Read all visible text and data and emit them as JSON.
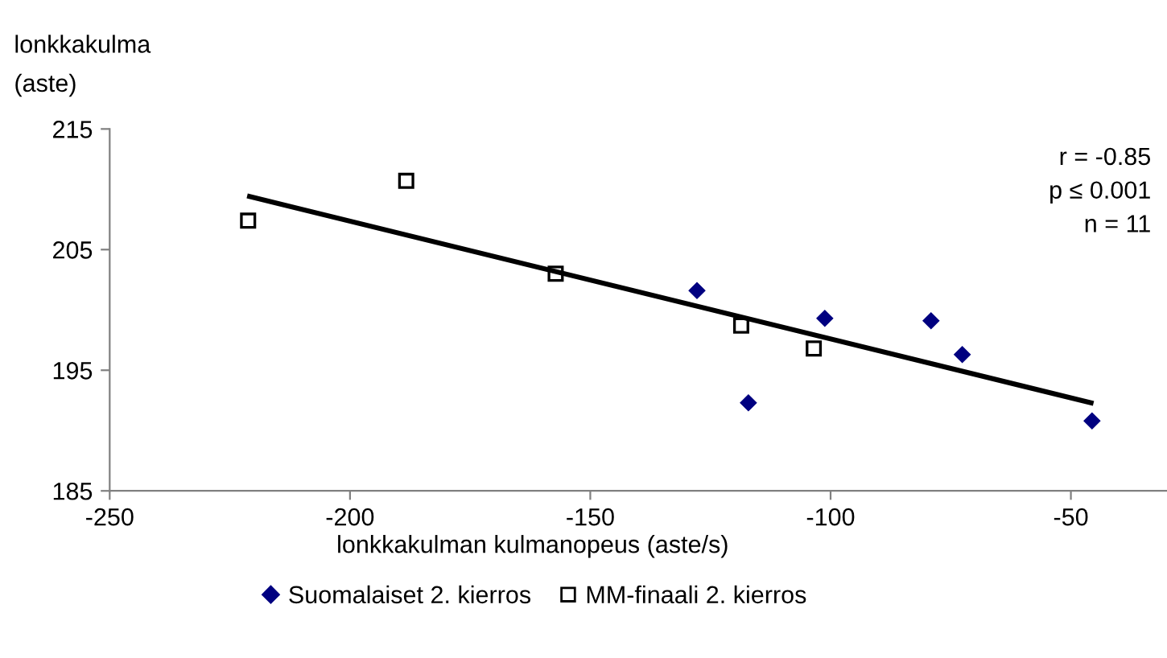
{
  "chart_data": {
    "type": "scatter",
    "xlabel": "lonkkakulman kulmanopeus (aste/s)",
    "ylabel": "lonkkakulma\n(aste)",
    "series": [
      {
        "name": "Suomalaiset 2. kierros",
        "color": "#000080",
        "marker": "diamond",
        "x": [
          -127.8,
          -117.1,
          -101.2,
          -79.1,
          -72.6,
          -45.6
        ],
        "values": [
          201.6,
          192.3,
          199.3,
          199.1,
          196.3,
          190.8
        ]
      },
      {
        "name": "MM-finaali 2. kierros",
        "color": "#000000",
        "marker": "square",
        "x": [
          -221.2,
          -188.3,
          -157.2,
          -118.6,
          -103.5
        ],
        "values": [
          207.4,
          210.7,
          203.0,
          198.7,
          196.8
        ]
      },
      {
        "type": "line",
        "color": "#000000",
        "marker": "none",
        "x": [
          -220.9,
          -45.8
        ],
        "values": [
          209.4,
          192.3
        ]
      }
    ],
    "xlim": [
      -250,
      -30
    ],
    "xticks": [
      -250,
      -200,
      -150,
      -100,
      -50
    ],
    "ylim": [
      185,
      215
    ],
    "yticks": [
      185,
      195,
      205,
      215
    ],
    "annotations": [
      "r = -0.85\np ≤ 0.001\nn = 11"
    ],
    "legend": "bottom",
    "grid": false
  }
}
